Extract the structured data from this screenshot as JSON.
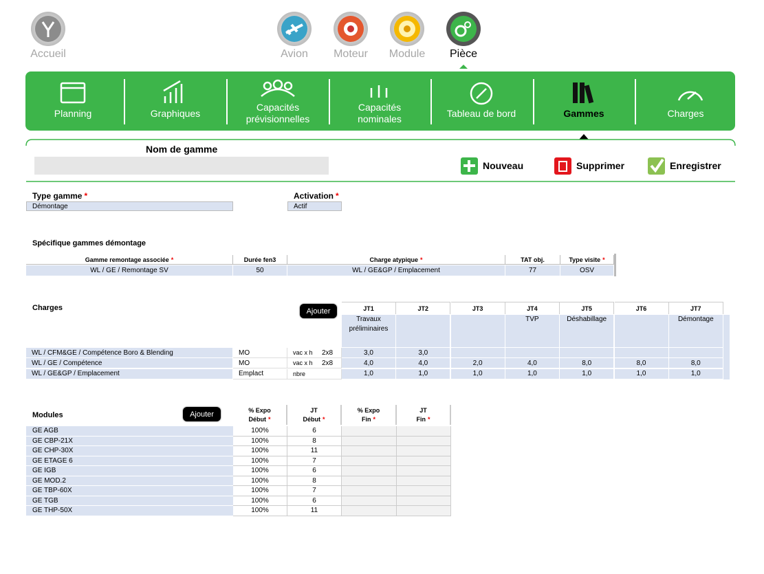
{
  "nav": {
    "items": [
      "Accueil",
      "Avion",
      "Moteur",
      "Module",
      "Pièce"
    ]
  },
  "menu": {
    "items": [
      "Planning",
      "Graphiques",
      "Capacités prévisionnelles",
      "Capacités nominales",
      "Tableau de bord",
      "Gammes",
      "Charges"
    ]
  },
  "required_mark": "*",
  "form": {
    "name_label": "Nom de gamme",
    "buttons": [
      "Nouveau",
      "Supprimer",
      "Enregistrer"
    ]
  },
  "type_gamme": {
    "label": "Type gamme",
    "value": "Démontage"
  },
  "activation": {
    "label": "Activation",
    "value": "Actif"
  },
  "specific": {
    "title": "Spécifique gammes démontage",
    "headers": [
      {
        "text": "Gamme remontage associée",
        "required": true
      },
      {
        "text": "Durée fen3",
        "required": false
      },
      {
        "text": "Charge atypique",
        "required": true
      },
      {
        "text": "TAT obj.",
        "required": false
      },
      {
        "text": "Type visite",
        "required": true
      }
    ],
    "row": [
      "WL / GE / Remontage SV",
      "50",
      "WL / GE&GP / Emplacement",
      "77",
      "OSV"
    ]
  },
  "charges": {
    "title": "Charges",
    "button": "Ajouter",
    "headers": [
      "JT1",
      "JT2",
      "JT3",
      "JT4",
      "JT5",
      "JT6",
      "JT7"
    ],
    "notes": [
      "Travaux préliminaires",
      null,
      null,
      "TVP",
      "Déshabillage",
      null,
      "Démontage"
    ],
    "rows": [
      {
        "name": "WL / CFM&GE / Compétence Boro & Blending",
        "type": "MO",
        "unit": "vac x h",
        "shift": "2x8",
        "values": [
          "3,0",
          "3,0",
          null,
          null,
          null,
          null,
          null
        ]
      },
      {
        "name": "WL / GE / Compétence",
        "type": "MO",
        "unit": "vac x h",
        "shift": "2x8",
        "values": [
          "4,0",
          "4,0",
          "2,0",
          "4,0",
          "8,0",
          "8,0",
          "8,0"
        ]
      },
      {
        "name": "WL / GE&GP / Emplacement",
        "type": "Emplact",
        "unit": "nbre",
        "shift": null,
        "values": [
          "1,0",
          "1,0",
          "1,0",
          "1,0",
          "1,0",
          "1,0",
          "1,0"
        ]
      }
    ]
  },
  "modules": {
    "title": "Modules",
    "button": "Ajouter",
    "headers": [
      {
        "lines": [
          "% Expo",
          "Début"
        ],
        "required": true
      },
      {
        "lines": [
          "JT",
          "Début"
        ],
        "required": true
      },
      {
        "lines": [
          "% Expo",
          "Fin"
        ],
        "required": true
      },
      {
        "lines": [
          "JT",
          "Fin"
        ],
        "required": true
      }
    ],
    "rows": [
      [
        "GE AGB",
        "100%",
        "6"
      ],
      [
        "GE CBP-21X",
        "100%",
        "8"
      ],
      [
        "GE CHP-30X",
        "100%",
        "11"
      ],
      [
        "GE ETAGE 6",
        "100%",
        "7"
      ],
      [
        "GE IGB",
        "100%",
        "6"
      ],
      [
        "GE MOD.2",
        "100%",
        "8"
      ],
      [
        "GE TBP-60X",
        "100%",
        "7"
      ],
      [
        "GE TGB",
        "100%",
        "6"
      ],
      [
        "GE THP-50X",
        "100%",
        "11"
      ]
    ]
  }
}
